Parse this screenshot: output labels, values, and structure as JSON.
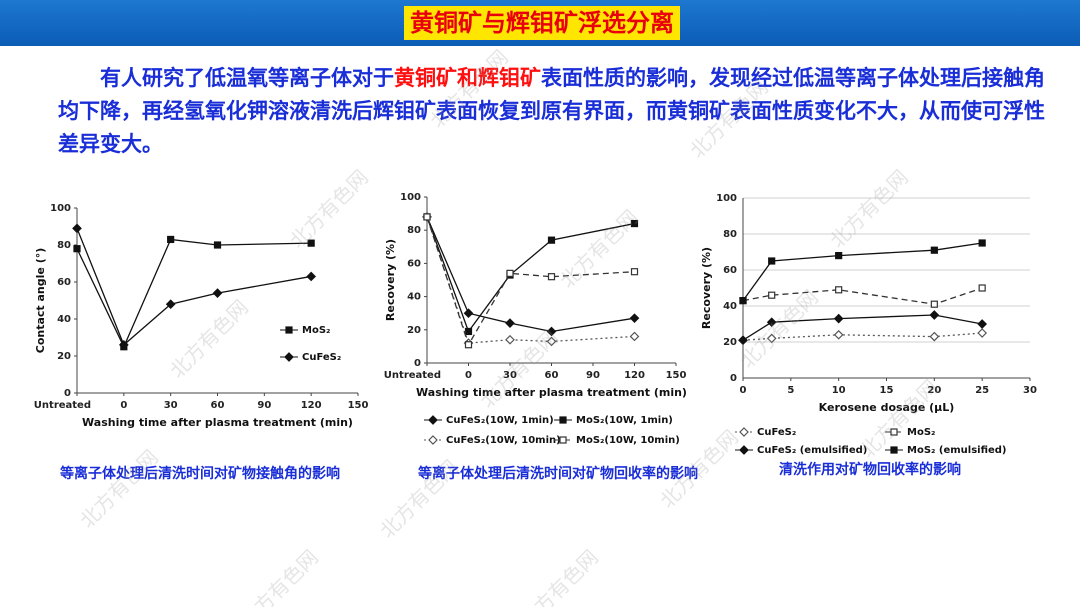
{
  "slide": {
    "title": "黄铜矿与辉钼矿浮选分离",
    "paragraph": [
      "有人研究了低温氧等离子体对于",
      "黄铜矿和辉钼矿",
      "表面性质的影响，发现经过低温等离子体处理后接触角均下降，再经氢氧化钾溶液清洗后辉钼矿表面恢复到原有界面，而黄铜矿表面性质变化不大，从而使可浮性差异变大。"
    ],
    "watermark": "北方有色网"
  },
  "chart_data": [
    {
      "type": "line",
      "caption": "等离子体处理后清洗时间对矿物接触角的影响",
      "x_label": "Washing time after plasma treatment (min)",
      "y_label": "Contact angle (°)",
      "x": [
        -30,
        0,
        30,
        60,
        120
      ],
      "xlim": [
        -30,
        150
      ],
      "xticks": [
        {
          "value": -30,
          "label": "Untreated"
        },
        0,
        30,
        60,
        90,
        120,
        150
      ],
      "ylim": [
        0,
        100
      ],
      "yticks": [
        0,
        20,
        40,
        60,
        80,
        100
      ],
      "grid": false,
      "legend": "center right",
      "series": [
        {
          "name": "MoS₂",
          "color": "#111111",
          "marker": "square",
          "filled": true,
          "dash": "solid",
          "values": [
            78,
            25,
            83,
            80,
            81
          ]
        },
        {
          "name": "CuFeS₂",
          "color": "#111111",
          "marker": "diamond",
          "filled": true,
          "dash": "solid",
          "values": [
            89,
            26,
            48,
            54,
            63
          ]
        }
      ]
    },
    {
      "type": "line",
      "caption": "等离子体处理后清洗时间对矿物回收率的影响",
      "x_label": "Washing time after plasma treatment (min)",
      "y_label": "Recovery (%)",
      "x": [
        -30,
        0,
        30,
        60,
        120
      ],
      "xlim": [
        -30,
        150
      ],
      "xticks": [
        {
          "value": -30,
          "label": "Untreated"
        },
        0,
        30,
        60,
        90,
        120,
        150
      ],
      "ylim": [
        0,
        100
      ],
      "yticks": [
        0,
        20,
        40,
        60,
        80,
        100
      ],
      "grid": false,
      "legend": "bottom",
      "series": [
        {
          "name": "CuFeS₂(10W, 1min)",
          "color": "#111111",
          "marker": "diamond",
          "filled": true,
          "dash": "solid",
          "values": [
            88,
            30,
            24,
            19,
            27
          ]
        },
        {
          "name": "MoS₂(10W, 1min)",
          "color": "#111111",
          "marker": "square",
          "filled": true,
          "dash": "solid",
          "values": [
            88,
            19,
            53,
            74,
            84
          ]
        },
        {
          "name": "CuFeS₂(10W, 10min)",
          "color": "#555555",
          "marker": "diamond",
          "filled": false,
          "dash": "dotted",
          "values": [
            88,
            12,
            14,
            13,
            16
          ]
        },
        {
          "name": "MoS₂(10W, 10min)",
          "color": "#333333",
          "marker": "square",
          "filled": false,
          "dash": "dashed",
          "values": [
            88,
            11,
            54,
            52,
            55
          ]
        }
      ]
    },
    {
      "type": "line",
      "caption": "清洗作用对矿物回收率的影响",
      "x_label": "Kerosene dosage (μL)",
      "y_label": "Recovery (%)",
      "x": [
        0,
        3,
        10,
        20,
        25
      ],
      "xlim": [
        0,
        30
      ],
      "xticks": [
        0,
        5,
        10,
        15,
        20,
        25,
        30
      ],
      "ylim": [
        0,
        100
      ],
      "yticks": [
        0,
        20,
        40,
        60,
        80,
        100
      ],
      "grid": true,
      "legend": "bottom",
      "series": [
        {
          "name": "CuFeS₂",
          "color": "#555555",
          "marker": "diamond",
          "filled": false,
          "dash": "dotted",
          "values": [
            21,
            22,
            24,
            23,
            25
          ]
        },
        {
          "name": "MoS₂",
          "color": "#333333",
          "marker": "square",
          "filled": false,
          "dash": "dashed",
          "values": [
            43,
            46,
            49,
            41,
            50
          ]
        },
        {
          "name": "CuFeS₂ (emulsified)",
          "color": "#111111",
          "marker": "diamond",
          "filled": true,
          "dash": "solid",
          "values": [
            21,
            31,
            33,
            35,
            30
          ]
        },
        {
          "name": "MoS₂ (emulsified)",
          "color": "#111111",
          "marker": "square",
          "filled": true,
          "dash": "solid",
          "values": [
            43,
            65,
            68,
            71,
            75
          ]
        }
      ]
    }
  ]
}
